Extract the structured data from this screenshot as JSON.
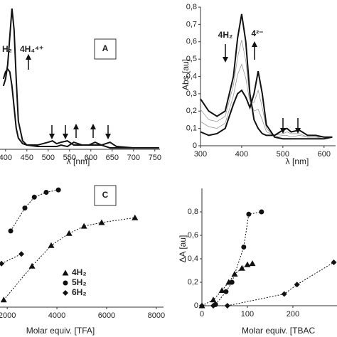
{
  "chart_data": [
    {
      "type": "line",
      "xlabel": "λ [nm]",
      "xlim": [
        387,
        762
      ],
      "xticks": [
        400,
        450,
        500,
        550,
        600,
        650,
        700,
        750
      ],
      "ylim": [
        0,
        1
      ],
      "x": [
        395,
        400,
        405,
        410,
        415,
        420,
        425,
        430,
        440,
        450,
        475,
        500,
        510,
        520,
        530,
        545,
        560,
        580,
        595,
        610,
        625,
        645,
        660,
        700,
        750,
        760
      ],
      "series": [
        {
          "color": "#111111",
          "line_width": 2,
          "values": [
            0.45,
            0.5,
            0.6,
            0.8,
            1.0,
            0.85,
            0.5,
            0.2,
            0.06,
            0.03,
            0.02,
            0.02,
            0.02,
            0.02,
            0.03,
            0.02,
            0.05,
            0.03,
            0.03,
            0.05,
            0.03,
            0.01,
            0.01,
            0.01,
            0.01,
            0.01
          ]
        },
        {
          "color": "#111111",
          "line_width": 2,
          "values": [
            0.5,
            0.55,
            0.57,
            0.55,
            0.45,
            0.3,
            0.15,
            0.08,
            0.04,
            0.03,
            0.03,
            0.05,
            0.06,
            0.04,
            0.05,
            0.06,
            0.03,
            0.03,
            0.03,
            0.03,
            0.03,
            0.05,
            0.02,
            0.01,
            0.01,
            0.01
          ]
        }
      ],
      "annotations": [
        "H₂",
        "4H₄⁴⁺",
        "A"
      ]
    },
    {
      "type": "line",
      "xlabel": "λ [nm]",
      "ylabel": "Abs [au]",
      "xlim": [
        300,
        628
      ],
      "xticks": [
        300,
        400,
        500,
        600
      ],
      "ylim": [
        0,
        0.8
      ],
      "yticks": [
        0,
        {
          "value": 0.1,
          "label": "0,1"
        },
        {
          "value": 0.2,
          "label": "0,2"
        },
        {
          "value": 0.3,
          "label": "0,3"
        },
        {
          "value": 0.4,
          "label": "0,4"
        },
        {
          "value": 0.5,
          "label": "0,5"
        },
        {
          "value": 0.6,
          "label": "0,6"
        },
        {
          "value": 0.7,
          "label": "0,7"
        },
        {
          "value": 0.8,
          "label": "0,8"
        }
      ],
      "x": [
        300,
        320,
        340,
        360,
        380,
        390,
        400,
        410,
        420,
        430,
        440,
        450,
        460,
        480,
        500,
        510,
        520,
        540,
        560,
        580,
        600,
        620
      ],
      "series": [
        {
          "color": "#999999",
          "line_width": 0.8,
          "values": [
            0.21,
            0.15,
            0.14,
            0.17,
            0.35,
            0.51,
            0.61,
            0.49,
            0.27,
            0.2,
            0.21,
            0.15,
            0.08,
            0.06,
            0.07,
            0.08,
            0.07,
            0.07,
            0.05,
            0.05,
            0.05,
            0.05
          ]
        },
        {
          "color": "#999999",
          "line_width": 0.8,
          "values": [
            0.14,
            0.11,
            0.1,
            0.13,
            0.29,
            0.41,
            0.47,
            0.39,
            0.25,
            0.25,
            0.32,
            0.22,
            0.1,
            0.05,
            0.06,
            0.06,
            0.05,
            0.06,
            0.05,
            0.05,
            0.04,
            0.05
          ]
        },
        {
          "color": "#111111",
          "line_width": 2,
          "values": [
            0.27,
            0.2,
            0.17,
            0.2,
            0.4,
            0.62,
            0.76,
            0.6,
            0.3,
            0.15,
            0.1,
            0.07,
            0.06,
            0.06,
            0.09,
            0.1,
            0.08,
            0.09,
            0.06,
            0.06,
            0.05,
            0.05
          ]
        },
        {
          "color": "#111111",
          "line_width": 2,
          "values": [
            0.08,
            0.06,
            0.07,
            0.1,
            0.24,
            0.3,
            0.32,
            0.28,
            0.22,
            0.3,
            0.43,
            0.3,
            0.12,
            0.05,
            0.04,
            0.04,
            0.04,
            0.04,
            0.04,
            0.04,
            0.04,
            0.05
          ]
        }
      ],
      "annotations": [
        "4H₂",
        "4²⁻"
      ]
    },
    {
      "type": "scatter",
      "xlabel": "Molar equiv. [TFA]",
      "line_style": "dotted",
      "legend": "center",
      "xlim": [
        1710,
        8290
      ],
      "xticks": [
        2000,
        4000,
        6000,
        8000
      ],
      "ylim": [
        0,
        1
      ],
      "series": [
        {
          "name": "4H₂",
          "marker": "triangle",
          "color": "#111111",
          "x": [
            1860,
            3000,
            3770,
            4490,
            5090,
            5800,
            7140
          ],
          "values": [
            0.06,
            0.34,
            0.51,
            0.61,
            0.67,
            0.7,
            0.74
          ]
        },
        {
          "name": "5H₂",
          "marker": "circle",
          "color": "#111111",
          "x": [
            2140,
            2710,
            3090,
            3570,
            4060
          ],
          "values": [
            0.63,
            0.82,
            0.91,
            0.95,
            0.97
          ]
        },
        {
          "name": "6H₂",
          "marker": "diamond",
          "color": "#111111",
          "x": [
            1770,
            2570
          ],
          "values": [
            0.36,
            0.44
          ]
        }
      ],
      "annotations": [
        "C"
      ]
    },
    {
      "type": "scatter",
      "xlabel": "Molar equiv. [TBAC",
      "ylabel": "ΔA [au]",
      "line_style": "dotted",
      "xlim": [
        0,
        297
      ],
      "xticks": [
        0,
        100,
        200
      ],
      "ylim": [
        0,
        1
      ],
      "yticks": [
        0,
        {
          "value": 0.2,
          "label": "0,2"
        },
        {
          "value": 0.4,
          "label": "0,4"
        },
        {
          "value": 0.6,
          "label": "0,6"
        },
        {
          "value": 0.8,
          "label": "0,8"
        }
      ],
      "series": [
        {
          "marker": "circle",
          "color": "#111111",
          "x": [
            30,
            53,
            66,
            92,
            103,
            131
          ],
          "values": [
            0.01,
            0.12,
            0.2,
            0.5,
            0.78,
            0.8
          ]
        },
        {
          "marker": "triangle",
          "color": "#111111",
          "x": [
            0,
            25,
            44,
            59,
            72,
            88,
            100,
            111
          ],
          "values": [
            0,
            0.05,
            0.13,
            0.2,
            0.27,
            0.32,
            0.35,
            0.36
          ]
        },
        {
          "marker": "diamond",
          "color": "#111111",
          "x": [
            0,
            25,
            56,
            181,
            209,
            290
          ],
          "values": [
            0,
            0,
            0,
            0.1,
            0.18,
            0.37
          ]
        }
      ]
    }
  ]
}
